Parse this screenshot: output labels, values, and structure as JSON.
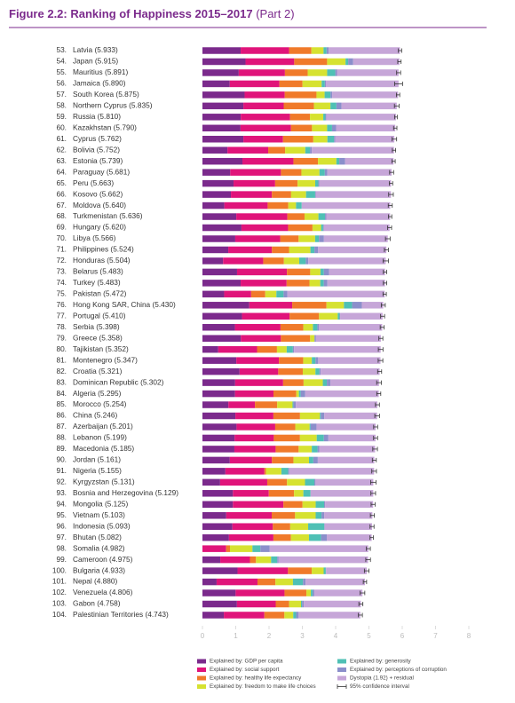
{
  "chart_data": {
    "type": "stacked-bar-horizontal",
    "title": "Figure 2.2: Ranking of Happiness 2015–2017",
    "title_part": "(Part 2)",
    "ranks": [
      "53.",
      "54.",
      "55.",
      "56.",
      "57.",
      "58.",
      "59.",
      "60.",
      "61.",
      "62.",
      "63.",
      "64.",
      "65.",
      "66.",
      "67.",
      "68.",
      "69.",
      "70.",
      "71.",
      "72.",
      "73.",
      "74.",
      "75.",
      "76.",
      "77.",
      "78.",
      "79.",
      "80.",
      "81.",
      "82.",
      "83.",
      "84.",
      "85.",
      "86.",
      "87.",
      "88.",
      "89.",
      "90.",
      "91.",
      "92.",
      "93.",
      "94.",
      "95.",
      "96.",
      "97.",
      "98.",
      "99.",
      "100.",
      "101.",
      "102.",
      "103.",
      "104."
    ],
    "categories": [
      "Latvia (5.933)",
      "Japan (5.915)",
      "Mauritius (5.891)",
      "Jamaica (5.890)",
      "South Korea (5.875)",
      "Northern Cyprus (5.835)",
      "Russia (5.810)",
      "Kazakhstan (5.790)",
      "Cyprus (5.762)",
      "Bolivia (5.752)",
      "Estonia (5.739)",
      "Paraguay (5.681)",
      "Peru (5.663)",
      "Kosovo (5.662)",
      "Moldova (5.640)",
      "Turkmenistan (5.636)",
      "Hungary (5.620)",
      "Libya (5.566)",
      "Philippines (5.524)",
      "Honduras (5.504)",
      "Belarus (5.483)",
      "Turkey (5.483)",
      "Pakistan (5.472)",
      "Hong Kong SAR, China (5.430)",
      "Portugal (5.410)",
      "Serbia (5.398)",
      "Greece (5.358)",
      "Tajikistan (5.352)",
      "Montenegro (5.347)",
      "Croatia (5.321)",
      "Dominican Republic (5.302)",
      "Algeria (5.295)",
      "Morocco (5.254)",
      "China (5.246)",
      "Azerbaijan (5.201)",
      "Lebanon (5.199)",
      "Macedonia (5.185)",
      "Jordan (5.161)",
      "Nigeria (5.155)",
      "Kyrgyzstan (5.131)",
      "Bosnia and Herzegovina (5.129)",
      "Mongolia (5.125)",
      "Vietnam (5.103)",
      "Indonesia (5.093)",
      "Bhutan (5.082)",
      "Somalia (4.982)",
      "Cameroon (4.975)",
      "Bulgaria (4.933)",
      "Nepal (4.880)",
      "Venezuela (4.806)",
      "Gabon (4.758)",
      "Palestinian Territories (4.743)"
    ],
    "series": [
      {
        "name": "Explained by: GDP per capita",
        "color": "#7b2a8c",
        "values": [
          1.148,
          1.294,
          1.09,
          0.819,
          1.266,
          1.229,
          1.151,
          1.143,
          1.229,
          0.751,
          1.2,
          0.835,
          0.934,
          0.855,
          0.657,
          1.016,
          1.171,
          0.985,
          0.775,
          0.62,
          1.039,
          1.148,
          0.652,
          1.405,
          1.188,
          0.975,
          1.154,
          0.474,
          1.017,
          1.115,
          0.982,
          0.979,
          0.779,
          0.989,
          1.024,
          0.965,
          0.959,
          0.822,
          0.689,
          0.53,
          0.915,
          0.914,
          0.715,
          0.899,
          0.796,
          0.0,
          0.535,
          1.054,
          0.425,
          0.996,
          1.036,
          0.642
        ]
      },
      {
        "name": "Explained by: social support",
        "color": "#e0147a",
        "values": [
          1.454,
          1.462,
          1.387,
          1.493,
          1.204,
          1.211,
          1.479,
          1.516,
          1.191,
          1.223,
          1.532,
          1.522,
          1.249,
          1.23,
          1.301,
          1.533,
          1.401,
          1.35,
          1.312,
          1.205,
          1.498,
          1.38,
          0.81,
          1.29,
          1.429,
          1.369,
          1.202,
          1.166,
          1.279,
          1.161,
          1.441,
          1.154,
          0.797,
          1.142,
          1.161,
          1.179,
          1.239,
          1.265,
          1.172,
          1.416,
          1.078,
          1.517,
          1.365,
          1.215,
          1.335,
          0.712,
          0.891,
          1.515,
          1.228,
          1.469,
          1.164,
          1.217
        ]
      },
      {
        "name": "Explained by: healthy life expectancy",
        "color": "#f07a2a",
        "values": [
          0.671,
          0.988,
          0.684,
          0.693,
          0.955,
          0.909,
          0.599,
          0.631,
          0.909,
          0.508,
          0.737,
          0.615,
          0.674,
          0.578,
          0.62,
          0.517,
          0.732,
          0.553,
          0.513,
          0.622,
          0.7,
          0.686,
          0.424,
          1.03,
          0.884,
          0.685,
          0.879,
          0.598,
          0.729,
          0.737,
          0.614,
          0.687,
          0.669,
          0.799,
          0.603,
          0.785,
          0.691,
          0.645,
          0.048,
          0.594,
          0.758,
          0.575,
          0.702,
          0.522,
          0.527,
          0.115,
          0.182,
          0.712,
          0.539,
          0.657,
          0.404,
          0.602
        ]
      },
      {
        "name": "Explained by: freedom to make life choices",
        "color": "#d6e231",
        "values": [
          0.363,
          0.553,
          0.584,
          0.575,
          0.244,
          0.495,
          0.399,
          0.454,
          0.423,
          0.606,
          0.553,
          0.541,
          0.53,
          0.448,
          0.232,
          0.417,
          0.259,
          0.496,
          0.643,
          0.459,
          0.307,
          0.324,
          0.334,
          0.524,
          0.562,
          0.288,
          0.131,
          0.292,
          0.259,
          0.38,
          0.578,
          0.077,
          0.46,
          0.597,
          0.43,
          0.503,
          0.394,
          0.468,
          0.462,
          0.54,
          0.28,
          0.395,
          0.618,
          0.538,
          0.541,
          0.674,
          0.454,
          0.359,
          0.526,
          0.133,
          0.356,
          0.266
        ]
      },
      {
        "name": "Explained by: generosity",
        "color": "#4fc0b5",
        "values": [
          0.092,
          0.079,
          0.245,
          0.096,
          0.175,
          0.179,
          0.065,
          0.148,
          0.202,
          0.141,
          0.086,
          0.162,
          0.092,
          0.274,
          0.171,
          0.199,
          0.061,
          0.116,
          0.12,
          0.197,
          0.101,
          0.106,
          0.216,
          0.246,
          0.055,
          0.134,
          0.0,
          0.187,
          0.111,
          0.12,
          0.12,
          0.055,
          0.026,
          0.029,
          0.031,
          0.214,
          0.173,
          0.13,
          0.201,
          0.281,
          0.216,
          0.253,
          0.177,
          0.484,
          0.364,
          0.238,
          0.183,
          0.064,
          0.302,
          0.056,
          0.032,
          0.086
        ]
      },
      {
        "name": "Explained by: perceptions of corruption",
        "color": "#8b8fcb",
        "values": [
          0.066,
          0.15,
          0.05,
          0.031,
          0.051,
          0.154,
          0.025,
          0.121,
          0.035,
          0.054,
          0.174,
          0.074,
          0.034,
          0.023,
          0.0,
          0.037,
          0.022,
          0.148,
          0.105,
          0.074,
          0.154,
          0.109,
          0.113,
          0.291,
          0.017,
          0.043,
          0.044,
          0.034,
          0.081,
          0.039,
          0.106,
          0.135,
          0.074,
          0.103,
          0.176,
          0.136,
          0.052,
          0.134,
          0.032,
          0.035,
          0.0,
          0.032,
          0.079,
          0.018,
          0.171,
          0.282,
          0.043,
          0.009,
          0.078,
          0.052,
          0.052,
          0.076
        ]
      },
      {
        "name": "Dystopia (1.92) + residual",
        "color": "#c6a6d8",
        "values": [
          2.139,
          1.389,
          1.851,
          2.183,
          1.98,
          1.658,
          2.092,
          1.777,
          1.773,
          2.469,
          1.457,
          1.932,
          2.15,
          2.254,
          2.659,
          1.917,
          1.974,
          1.918,
          2.056,
          2.327,
          1.684,
          1.73,
          2.923,
          0.644,
          1.275,
          1.904,
          1.948,
          2.601,
          1.871,
          1.769,
          1.461,
          2.208,
          2.449,
          1.587,
          1.776,
          1.417,
          1.677,
          1.697,
          2.551,
          1.735,
          1.882,
          1.439,
          1.447,
          1.417,
          1.348,
          2.961,
          2.687,
          1.22,
          1.782,
          1.443,
          1.714,
          1.854
        ]
      }
    ],
    "ci_name": "95% confidence interval",
    "ci_color": "#333333",
    "errors": [
      0.05,
      0.05,
      0.06,
      0.12,
      0.05,
      0.07,
      0.04,
      0.05,
      0.07,
      0.05,
      0.05,
      0.06,
      0.05,
      0.07,
      0.06,
      0.05,
      0.06,
      0.07,
      0.06,
      0.08,
      0.05,
      0.05,
      0.05,
      0.06,
      0.06,
      0.06,
      0.06,
      0.07,
      0.07,
      0.06,
      0.07,
      0.06,
      0.06,
      0.07,
      0.06,
      0.06,
      0.07,
      0.06,
      0.07,
      0.08,
      0.07,
      0.06,
      0.06,
      0.06,
      0.05,
      0.06,
      0.07,
      0.07,
      0.05,
      0.07,
      0.06,
      0.06
    ],
    "xlim": [
      0,
      8
    ],
    "xticks": [
      0,
      1,
      2,
      3,
      4,
      5,
      6,
      7,
      8
    ]
  }
}
